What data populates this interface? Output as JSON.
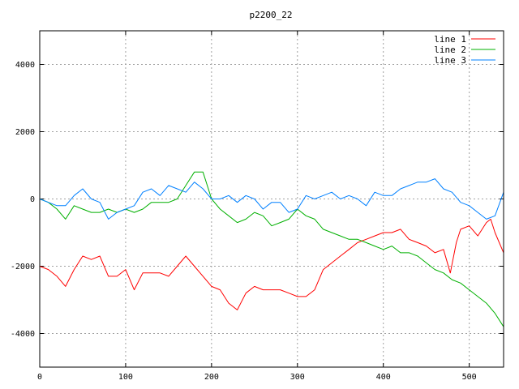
{
  "chart_data": {
    "type": "line",
    "title": "p2200_22",
    "xlabel": "",
    "ylabel": "",
    "xlim": [
      0,
      540
    ],
    "ylim": [
      -5000,
      5000
    ],
    "xticks": [
      0,
      100,
      200,
      300,
      400,
      500
    ],
    "yticks": [
      -4000,
      -2000,
      0,
      2000,
      4000
    ],
    "grid": true,
    "legend_position": "top-right",
    "series": [
      {
        "name": "line 1",
        "color": "#ff0000",
        "x": [
          0,
          10,
          20,
          30,
          40,
          50,
          60,
          70,
          80,
          90,
          100,
          110,
          120,
          130,
          140,
          150,
          160,
          170,
          180,
          190,
          200,
          210,
          220,
          230,
          240,
          250,
          260,
          270,
          280,
          290,
          300,
          310,
          320,
          330,
          340,
          350,
          360,
          370,
          380,
          390,
          400,
          410,
          420,
          430,
          440,
          450,
          460,
          470,
          478,
          485,
          490,
          500,
          510,
          520,
          525,
          530,
          540
        ],
        "y": [
          -2000,
          -2100,
          -2300,
          -2600,
          -2100,
          -1700,
          -1800,
          -1700,
          -2300,
          -2300,
          -2100,
          -2700,
          -2200,
          -2200,
          -2200,
          -2300,
          -2000,
          -1700,
          -2000,
          -2300,
          -2600,
          -2700,
          -3100,
          -3300,
          -2800,
          -2600,
          -2700,
          -2700,
          -2700,
          -2800,
          -2900,
          -2900,
          -2700,
          -2100,
          -1900,
          -1700,
          -1500,
          -1300,
          -1200,
          -1100,
          -1000,
          -1000,
          -900,
          -1200,
          -1300,
          -1400,
          -1600,
          -1500,
          -2200,
          -1300,
          -900,
          -800,
          -1100,
          -700,
          -600,
          -1000,
          -1600
        ]
      },
      {
        "name": "line 2",
        "color": "#00b000",
        "x": [
          0,
          10,
          20,
          30,
          40,
          50,
          60,
          70,
          80,
          90,
          100,
          110,
          120,
          130,
          140,
          150,
          160,
          170,
          180,
          190,
          200,
          210,
          220,
          230,
          240,
          250,
          260,
          270,
          280,
          290,
          300,
          310,
          320,
          330,
          340,
          350,
          360,
          370,
          380,
          390,
          400,
          410,
          420,
          430,
          440,
          450,
          460,
          470,
          480,
          490,
          500,
          510,
          520,
          530,
          540
        ],
        "y": [
          0,
          -100,
          -300,
          -600,
          -200,
          -300,
          -400,
          -400,
          -300,
          -400,
          -300,
          -400,
          -300,
          -100,
          -100,
          -100,
          0,
          400,
          800,
          800,
          0,
          -300,
          -500,
          -700,
          -600,
          -400,
          -500,
          -800,
          -700,
          -600,
          -300,
          -500,
          -600,
          -900,
          -1000,
          -1100,
          -1200,
          -1200,
          -1300,
          -1400,
          -1500,
          -1400,
          -1600,
          -1600,
          -1700,
          -1900,
          -2100,
          -2200,
          -2400,
          -2500,
          -2700,
          -2900,
          -3100,
          -3400,
          -3800
        ]
      },
      {
        "name": "line 3",
        "color": "#0080ff",
        "x": [
          0,
          10,
          20,
          30,
          40,
          50,
          60,
          70,
          80,
          90,
          100,
          110,
          120,
          130,
          140,
          150,
          160,
          170,
          180,
          190,
          200,
          210,
          220,
          230,
          240,
          250,
          260,
          270,
          280,
          290,
          300,
          310,
          320,
          330,
          340,
          350,
          360,
          370,
          380,
          390,
          400,
          410,
          420,
          430,
          440,
          450,
          460,
          470,
          480,
          490,
          500,
          510,
          520,
          530,
          540
        ],
        "y": [
          0,
          -100,
          -200,
          -200,
          100,
          300,
          0,
          -100,
          -600,
          -400,
          -300,
          -200,
          200,
          300,
          100,
          400,
          300,
          200,
          500,
          300,
          0,
          0,
          100,
          -100,
          100,
          0,
          -300,
          -100,
          -100,
          -400,
          -300,
          100,
          0,
          100,
          200,
          0,
          100,
          0,
          -200,
          200,
          100,
          100,
          300,
          400,
          500,
          500,
          600,
          300,
          200,
          -100,
          -200,
          -400,
          -600,
          -500,
          200
        ]
      }
    ]
  }
}
